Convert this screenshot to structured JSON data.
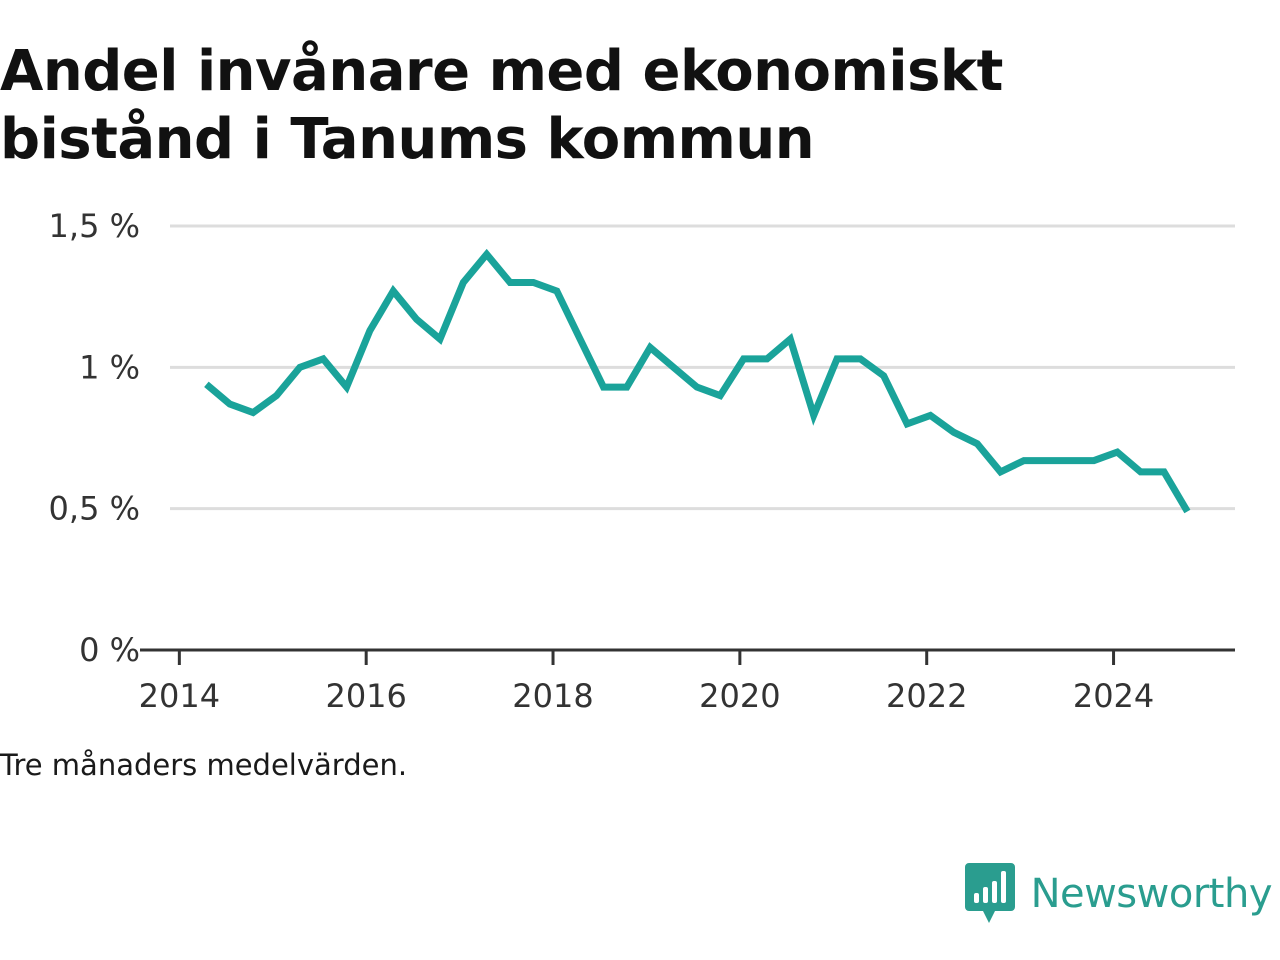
{
  "title": "Andel invånare med ekonomiskt bistånd i Tanums kommun",
  "note": "Tre månaders medelvärden.",
  "brand": {
    "name": "Newsworthy",
    "logo_icon": "newsworthy-chart-bubble-icon"
  },
  "colors": {
    "line": "#1aa39a",
    "grid": "#dddddd",
    "axis": "#333333",
    "brand": "#2a9d8f"
  },
  "chart_data": {
    "type": "line",
    "title": "Andel invånare med ekonomiskt bistånd i Tanums kommun",
    "xlabel": "",
    "ylabel": "",
    "xlim": [
      2013.9,
      2025.3
    ],
    "ylim": [
      0,
      1.5
    ],
    "x_ticks": [
      2014,
      2016,
      2018,
      2020,
      2022,
      2024
    ],
    "x_tick_labels": [
      "2014",
      "2016",
      "2018",
      "2020",
      "2022",
      "2024"
    ],
    "y_ticks": [
      0,
      0.5,
      1,
      1.5
    ],
    "y_tick_labels": [
      "0 %",
      "0,5 %",
      "1 %",
      "1,5 %"
    ],
    "grid": true,
    "series": [
      {
        "x": [
          2014.29,
          2014.54,
          2014.79,
          2015.04,
          2015.29,
          2015.54,
          2015.79,
          2016.04,
          2016.29,
          2016.54,
          2016.79,
          2017.04,
          2017.29,
          2017.54,
          2017.79,
          2018.04,
          2018.29,
          2018.54,
          2018.79,
          2019.04,
          2019.29,
          2019.54,
          2019.79,
          2020.04,
          2020.29,
          2020.54,
          2020.79,
          2021.04,
          2021.29,
          2021.54,
          2021.79,
          2022.04,
          2022.29,
          2022.54,
          2022.79,
          2023.04,
          2023.29,
          2023.54,
          2023.79,
          2024.04,
          2024.29,
          2024.54,
          2024.79
        ],
        "y": [
          0.94,
          0.87,
          0.84,
          0.9,
          1.0,
          1.03,
          0.93,
          1.13,
          1.27,
          1.17,
          1.1,
          1.3,
          1.4,
          1.3,
          1.3,
          1.27,
          1.1,
          0.93,
          0.93,
          1.07,
          1.0,
          0.93,
          0.9,
          1.03,
          1.03,
          1.1,
          0.83,
          1.03,
          1.03,
          0.97,
          0.8,
          0.83,
          0.77,
          0.73,
          0.63,
          0.67,
          0.67,
          0.67,
          0.67,
          0.7,
          0.63,
          0.63,
          0.49
        ]
      }
    ]
  }
}
